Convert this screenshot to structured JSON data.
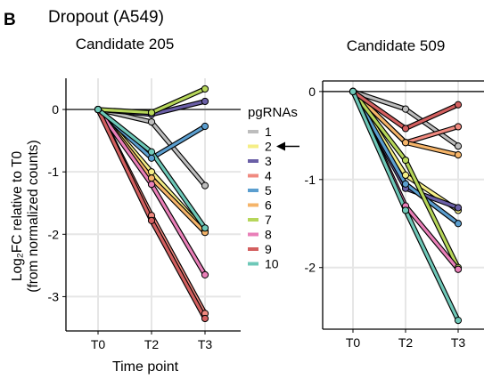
{
  "panel_letter": "B",
  "figure_title": "Dropout (A549)",
  "legend": {
    "title": "pgRNAs",
    "items": [
      {
        "label": "1",
        "color": "#bdbdbd"
      },
      {
        "label": "2",
        "color": "#f5ee86"
      },
      {
        "label": "3",
        "color": "#6a5fa6"
      },
      {
        "label": "4",
        "color": "#f08a80"
      },
      {
        "label": "5",
        "color": "#5b9ecf"
      },
      {
        "label": "6",
        "color": "#f5b469"
      },
      {
        "label": "7",
        "color": "#b6d65a"
      },
      {
        "label": "8",
        "color": "#e97fb8"
      },
      {
        "label": "9",
        "color": "#d35f5f"
      },
      {
        "label": "10",
        "color": "#6ec8b8"
      }
    ],
    "arrow_target": "2"
  },
  "chart_data": [
    {
      "type": "line",
      "title": "Candidate 205",
      "xlabel": "Time point",
      "ylabel": "Log₂FC relative to T0",
      "ylabel2": "(from normalized counts)",
      "categories": [
        "T0",
        "T2",
        "T3"
      ],
      "ylim": [
        -3.55,
        0.5
      ],
      "yticks": [
        0,
        -1,
        -2,
        -3
      ],
      "grid": true,
      "legend": "right",
      "series": [
        {
          "name": "1",
          "values": [
            0,
            -0.2,
            -1.22
          ]
        },
        {
          "name": "2",
          "values": [
            0,
            -1.0,
            -1.95
          ]
        },
        {
          "name": "3",
          "values": [
            0,
            -0.08,
            0.13
          ]
        },
        {
          "name": "4",
          "values": [
            0,
            -1.7,
            -3.27
          ]
        },
        {
          "name": "5",
          "values": [
            0,
            -0.78,
            -0.27
          ]
        },
        {
          "name": "6",
          "values": [
            0,
            -1.1,
            -1.97
          ]
        },
        {
          "name": "7",
          "values": [
            0,
            -0.05,
            0.33
          ]
        },
        {
          "name": "8",
          "values": [
            0,
            -1.2,
            -2.65
          ]
        },
        {
          "name": "9",
          "values": [
            0,
            -1.78,
            -3.35
          ]
        },
        {
          "name": "10",
          "values": [
            0,
            -0.68,
            -1.9
          ]
        }
      ]
    },
    {
      "type": "line",
      "title": "Candidate 509",
      "xlabel": "",
      "ylabel": "",
      "categories": [
        "T0",
        "T2",
        "T3"
      ],
      "ylim": [
        -2.7,
        0.12
      ],
      "yticks": [
        0,
        -1,
        -2
      ],
      "grid": true,
      "series": [
        {
          "name": "1",
          "values": [
            0,
            -0.2,
            -0.62
          ]
        },
        {
          "name": "2",
          "values": [
            0,
            -0.95,
            -1.35
          ]
        },
        {
          "name": "3",
          "values": [
            0,
            -1.1,
            -1.32
          ]
        },
        {
          "name": "4",
          "values": [
            0,
            -0.58,
            -0.4
          ]
        },
        {
          "name": "5",
          "values": [
            0,
            -1.05,
            -1.5
          ]
        },
        {
          "name": "6",
          "values": [
            0,
            -0.58,
            -0.72
          ]
        },
        {
          "name": "7",
          "values": [
            0,
            -0.78,
            -2.0
          ]
        },
        {
          "name": "8",
          "values": [
            0,
            -1.3,
            -2.02
          ]
        },
        {
          "name": "9",
          "values": [
            0,
            -0.42,
            -0.15
          ]
        },
        {
          "name": "10",
          "values": [
            0,
            -1.35,
            -2.6
          ]
        }
      ]
    }
  ]
}
